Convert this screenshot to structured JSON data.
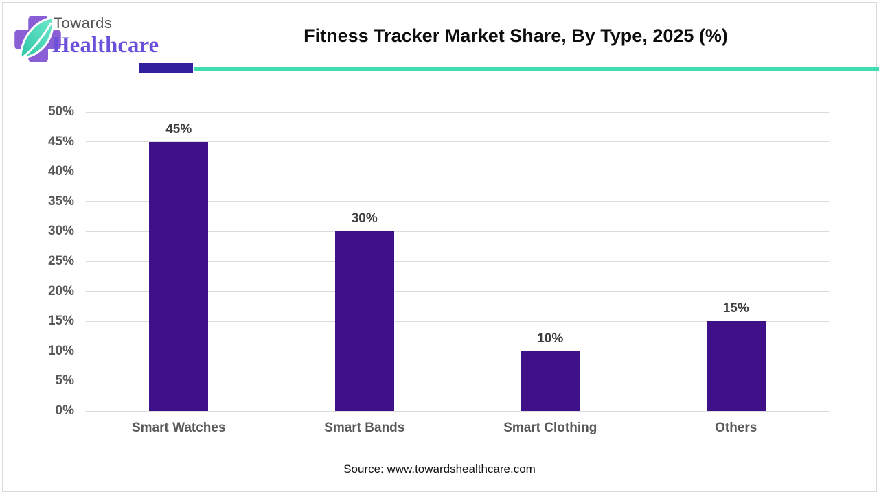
{
  "logo": {
    "towards": "Towards",
    "healthcare": "Healthcare",
    "cross_color": "#8a5fd6",
    "leaf_color_light": "#6fe9cd",
    "leaf_color_dark": "#2ec4a5",
    "healthcare_color": "#6a50da",
    "towards_color": "#565656"
  },
  "header": {
    "title": "Fitness Tracker Market Share, By Type, 2025 (%)"
  },
  "divider": {
    "purple_color": "#32219e",
    "teal_color": "#41dcb0"
  },
  "chart_data": {
    "type": "bar",
    "title": "Fitness Tracker Market Share, By Type, 2025 (%)",
    "categories": [
      "Smart Watches",
      "Smart Bands",
      "Smart Clothing",
      "Others"
    ],
    "values": [
      45,
      30,
      10,
      15
    ],
    "value_labels": [
      "45%",
      "30%",
      "10%",
      "15%"
    ],
    "xlabel": "",
    "ylabel": "",
    "ylim": [
      0,
      50
    ],
    "ytick_step": 5,
    "ytick_labels": [
      "0%",
      "5%",
      "10%",
      "15%",
      "20%",
      "25%",
      "30%",
      "35%",
      "40%",
      "45%",
      "50%"
    ],
    "grid": true,
    "legend": false,
    "bar_color": "#3f1189",
    "gridline_color": "#dcdcdc"
  },
  "footer": {
    "source": "Source: www.towardshealthcare.com"
  }
}
